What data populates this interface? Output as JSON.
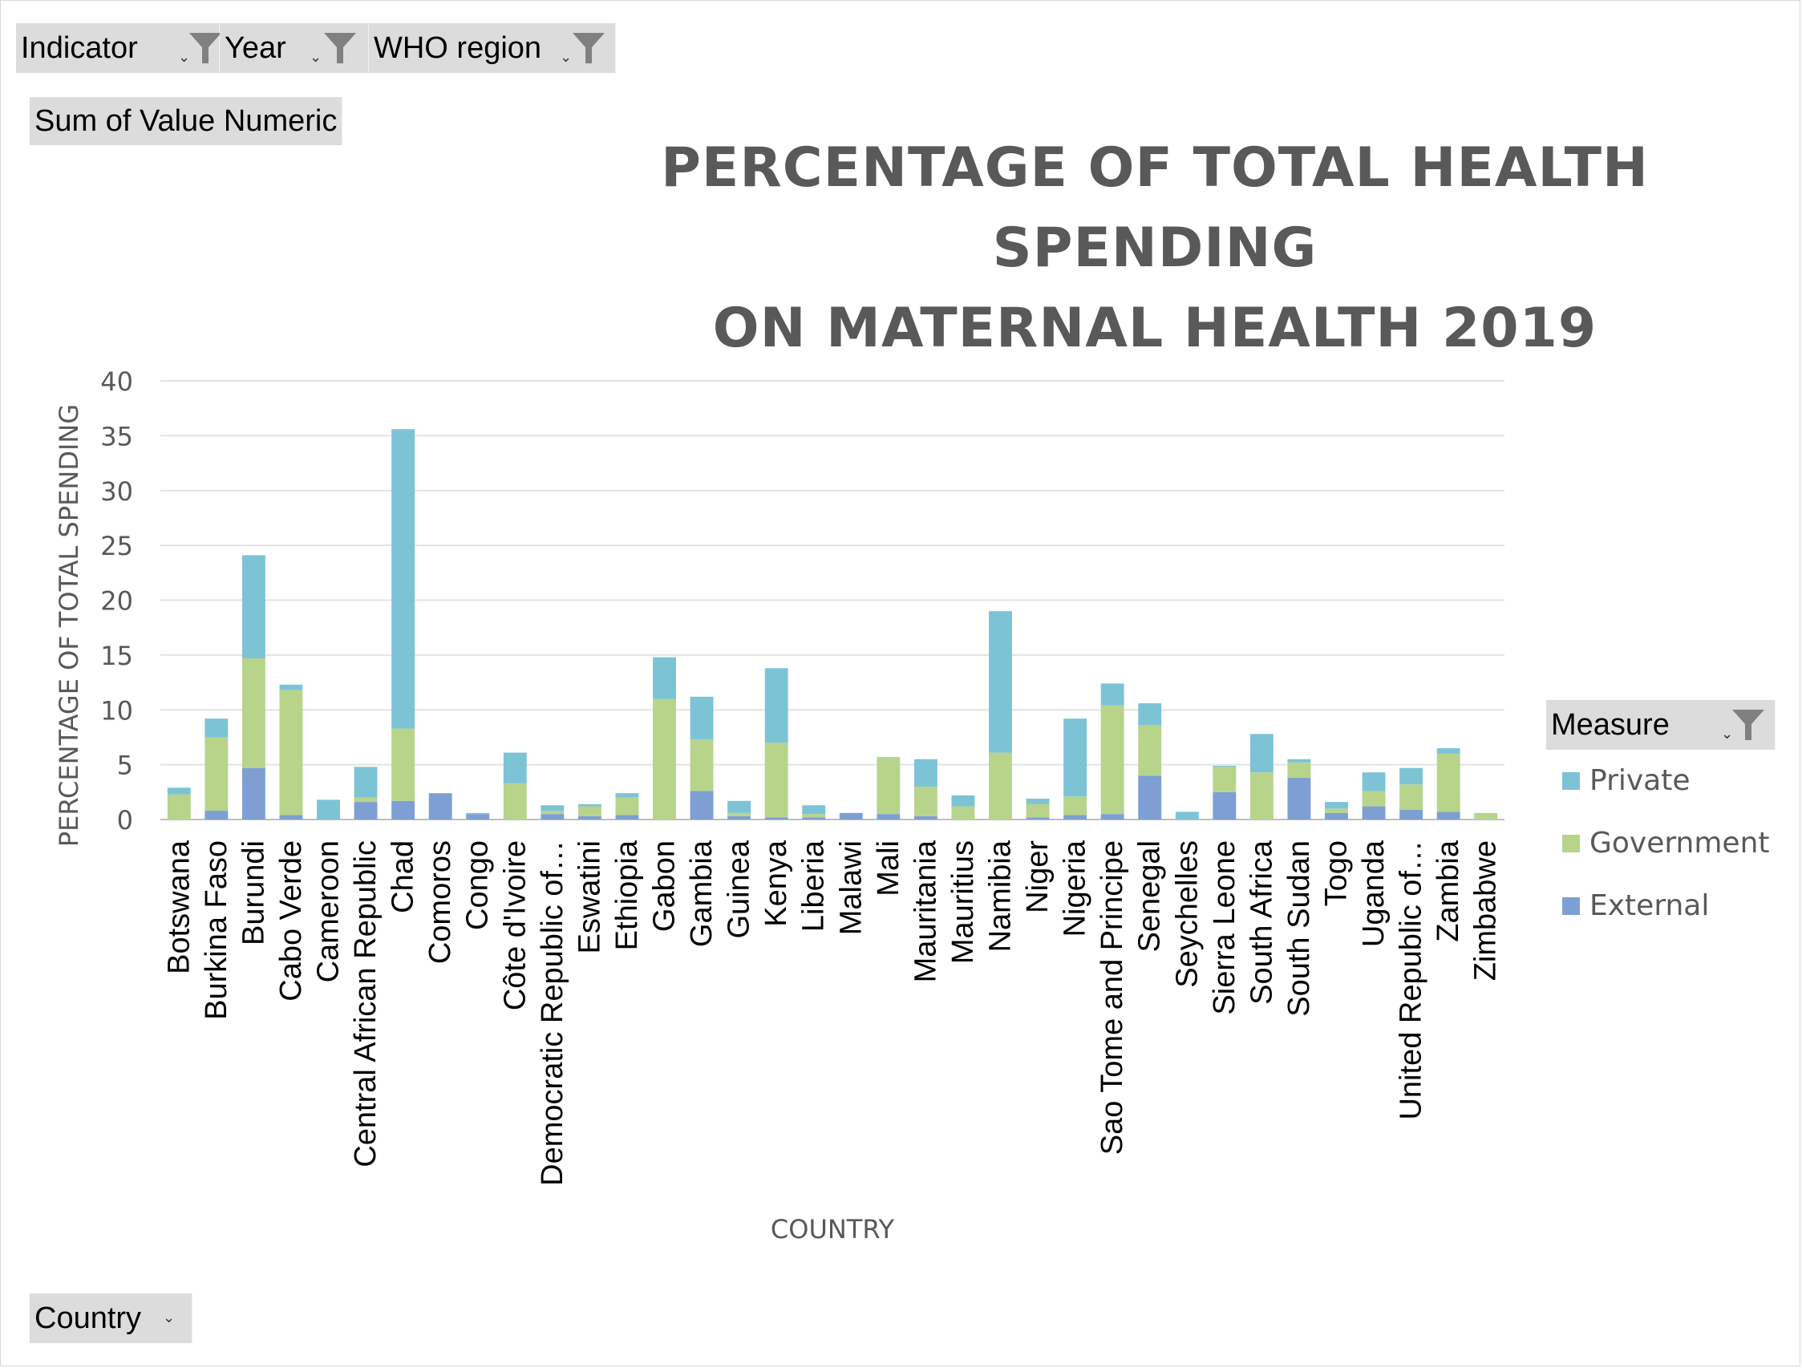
{
  "filters": {
    "indicator": "Indicator",
    "year": "Year",
    "who_region": "WHO region",
    "values_field": "Sum of Value Numeric",
    "row_field": "Country",
    "legend_field": "Measure"
  },
  "icons": {
    "filter": "funnel-icon",
    "dropdown": "dropdown-arrow-icon"
  },
  "colors": {
    "private": "#7cc3d6",
    "government": "#b7d48a",
    "external": "#7d9fd3"
  },
  "chart_data": {
    "type": "bar",
    "stacked": true,
    "title": "PERCENTAGE OF TOTAL HEALTH SPENDING ON MATERNAL HEALTH 2019",
    "title_lines": [
      "PERCENTAGE OF TOTAL HEALTH SPENDING",
      "ON MATERNAL HEALTH 2019"
    ],
    "xlabel": "COUNTRY",
    "ylabel": "PERCENTAGE OF TOTAL SPENDING",
    "ylim": [
      0,
      40
    ],
    "yticks": [
      0,
      5,
      10,
      15,
      20,
      25,
      30,
      35,
      40
    ],
    "grid": true,
    "legend_position": "right",
    "categories": [
      "Botswana",
      "Burkina Faso",
      "Burundi",
      "Cabo Verde",
      "Cameroon",
      "Central African Republic",
      "Chad",
      "Comoros",
      "Congo",
      "Côte d'Ivoire",
      "Democratic Republic of…",
      "Eswatini",
      "Ethiopia",
      "Gabon",
      "Gambia",
      "Guinea",
      "Kenya",
      "Liberia",
      "Malawi",
      "Mali",
      "Mauritania",
      "Mauritius",
      "Namibia",
      "Niger",
      "Nigeria",
      "Sao Tome and Principe",
      "Senegal",
      "Seychelles",
      "Sierra Leone",
      "South Africa",
      "South Sudan",
      "Togo",
      "Uganda",
      "United Republic of…",
      "Zambia",
      "Zimbabwe"
    ],
    "series": [
      {
        "name": "External",
        "values": [
          0,
          0.8,
          4.7,
          0.4,
          0,
          1.6,
          1.7,
          2.4,
          0.5,
          0,
          0.5,
          0.3,
          0.4,
          0,
          2.6,
          0.3,
          0.2,
          0.2,
          0.6,
          0.5,
          0.3,
          0,
          0,
          0.2,
          0.4,
          0.5,
          4.0,
          0,
          2.5,
          0,
          3.8,
          0.6,
          1.2,
          0.9,
          0.7,
          0
        ]
      },
      {
        "name": "Government",
        "values": [
          2.3,
          6.7,
          10.0,
          11.4,
          0,
          0.4,
          6.6,
          0,
          0,
          3.3,
          0.3,
          0.9,
          1.6,
          11.0,
          4.7,
          0.3,
          6.8,
          0.3,
          0,
          5.2,
          2.7,
          1.2,
          6.1,
          1.2,
          1.7,
          9.9,
          4.6,
          0,
          2.3,
          4.3,
          1.4,
          0.4,
          1.4,
          2.3,
          5.3,
          0.6
        ]
      },
      {
        "name": "Private",
        "values": [
          0.6,
          1.7,
          9.4,
          0.5,
          1.8,
          2.8,
          27.3,
          0,
          0.1,
          2.8,
          0.5,
          0.2,
          0.4,
          3.8,
          3.9,
          1.1,
          6.8,
          0.8,
          0,
          0,
          2.5,
          1.0,
          12.9,
          0.5,
          7.1,
          2.0,
          2.0,
          0.7,
          0.1,
          3.5,
          0.3,
          0.6,
          1.7,
          1.5,
          0.5,
          0
        ]
      }
    ],
    "legend_order": [
      "Private",
      "Government",
      "External"
    ]
  }
}
